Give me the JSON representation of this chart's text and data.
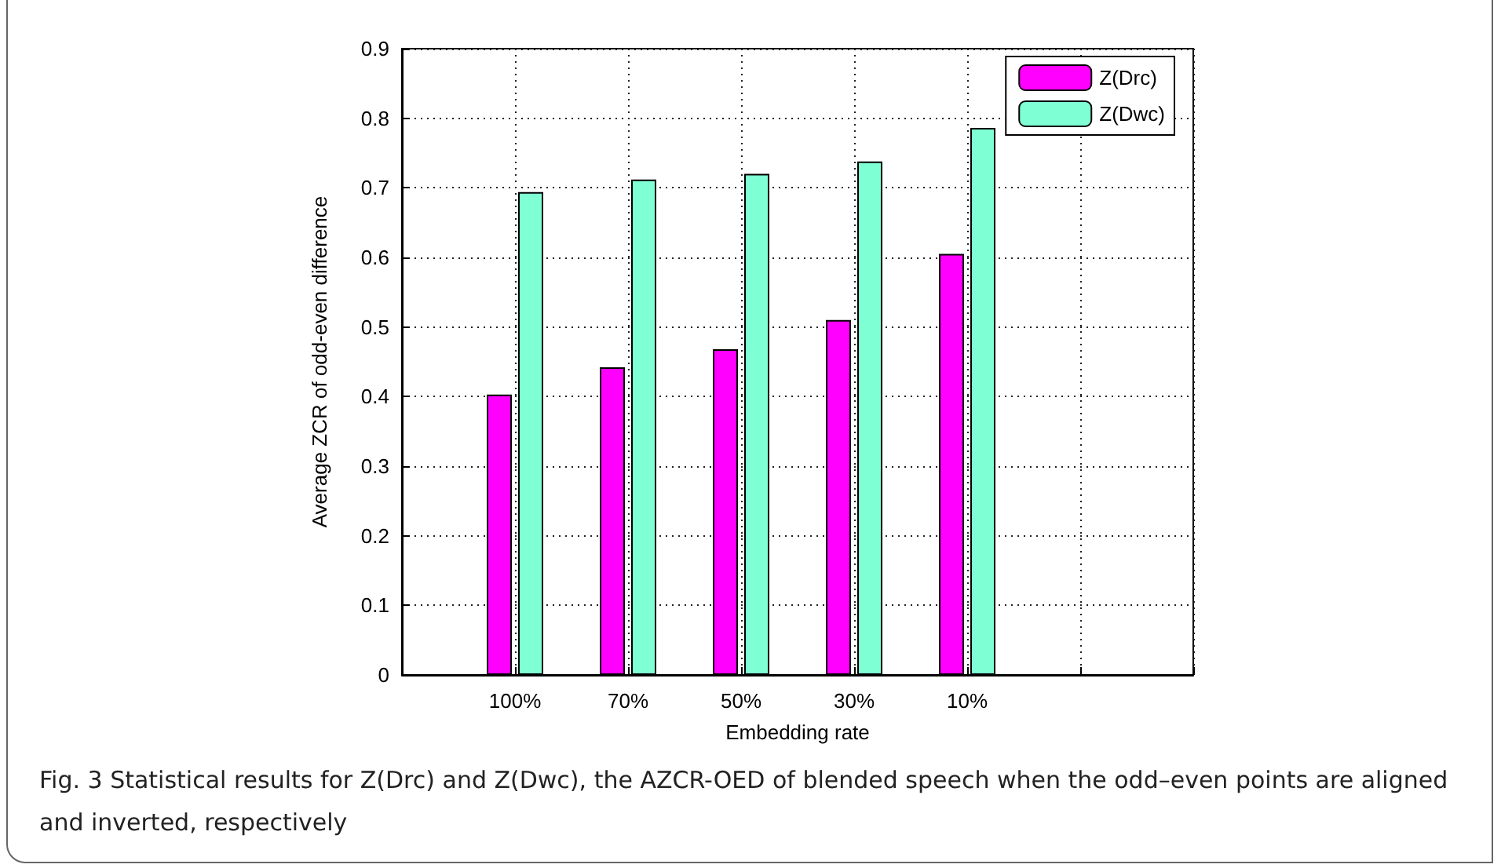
{
  "chart_data": {
    "type": "bar",
    "categories": [
      "100%",
      "70%",
      "50%",
      "30%",
      "10%",
      null
    ],
    "series": [
      {
        "name": "Z(Drc)",
        "color": "#ff00ff",
        "values": [
          0.403,
          0.442,
          0.468,
          0.51,
          0.605,
          null
        ]
      },
      {
        "name": "Z(Dwc)",
        "color": "#7fffd4",
        "values": [
          0.694,
          0.712,
          0.72,
          0.738,
          0.786,
          null
        ]
      }
    ],
    "xlabel": "Embedding rate",
    "ylabel": "Average ZCR of odd-even difference",
    "ylim": [
      0,
      0.9
    ],
    "yticks": [
      0,
      0.1,
      0.2,
      0.3,
      0.4,
      0.5,
      0.6,
      0.7,
      0.8,
      0.9
    ],
    "grid": true,
    "legend": "top right",
    "annotations": [
      "Fig. 3  Statistical results for Z(Drc) and Z(Dwc), the AZCR-OED of blended speech when the odd–even points are aligned and inverted, respectively"
    ]
  }
}
